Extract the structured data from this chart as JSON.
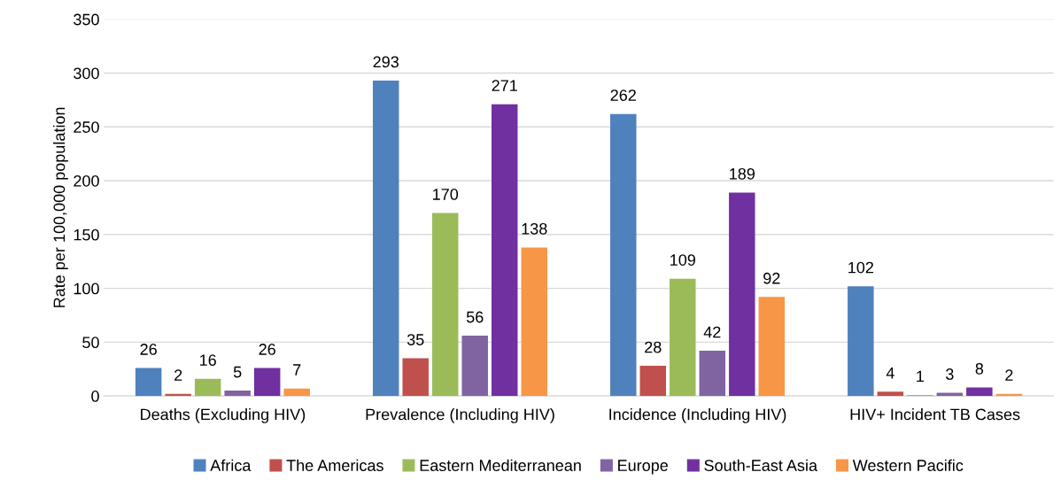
{
  "chart_data": {
    "type": "bar",
    "ylabel": "Rate per 100,000 population",
    "categories": [
      "Deaths (Excluding HIV)",
      "Prevalence (Including HIV)",
      "Incidence (Including HIV)",
      "HIV+ Incident TB Cases"
    ],
    "series": [
      {
        "name": "Africa",
        "color": "#4f81bd",
        "values": [
          26,
          293,
          262,
          102
        ]
      },
      {
        "name": "The Americas",
        "color": "#c0504d",
        "values": [
          2,
          35,
          28,
          4
        ]
      },
      {
        "name": "Eastern Mediterranean",
        "color": "#9bbb59",
        "values": [
          16,
          170,
          109,
          1
        ]
      },
      {
        "name": "Europe",
        "color": "#8064a2",
        "values": [
          5,
          56,
          42,
          3
        ]
      },
      {
        "name": "South-East Asia",
        "color": "#7030a0",
        "values": [
          26,
          271,
          189,
          8
        ]
      },
      {
        "name": "Western Pacific",
        "color": "#f79646",
        "values": [
          7,
          138,
          92,
          2
        ]
      }
    ],
    "ylim": [
      0,
      350
    ],
    "yticks": [
      0,
      50,
      100,
      150,
      200,
      250,
      300,
      350
    ],
    "grid": "y",
    "legend": "bottom",
    "data_labels": true
  }
}
